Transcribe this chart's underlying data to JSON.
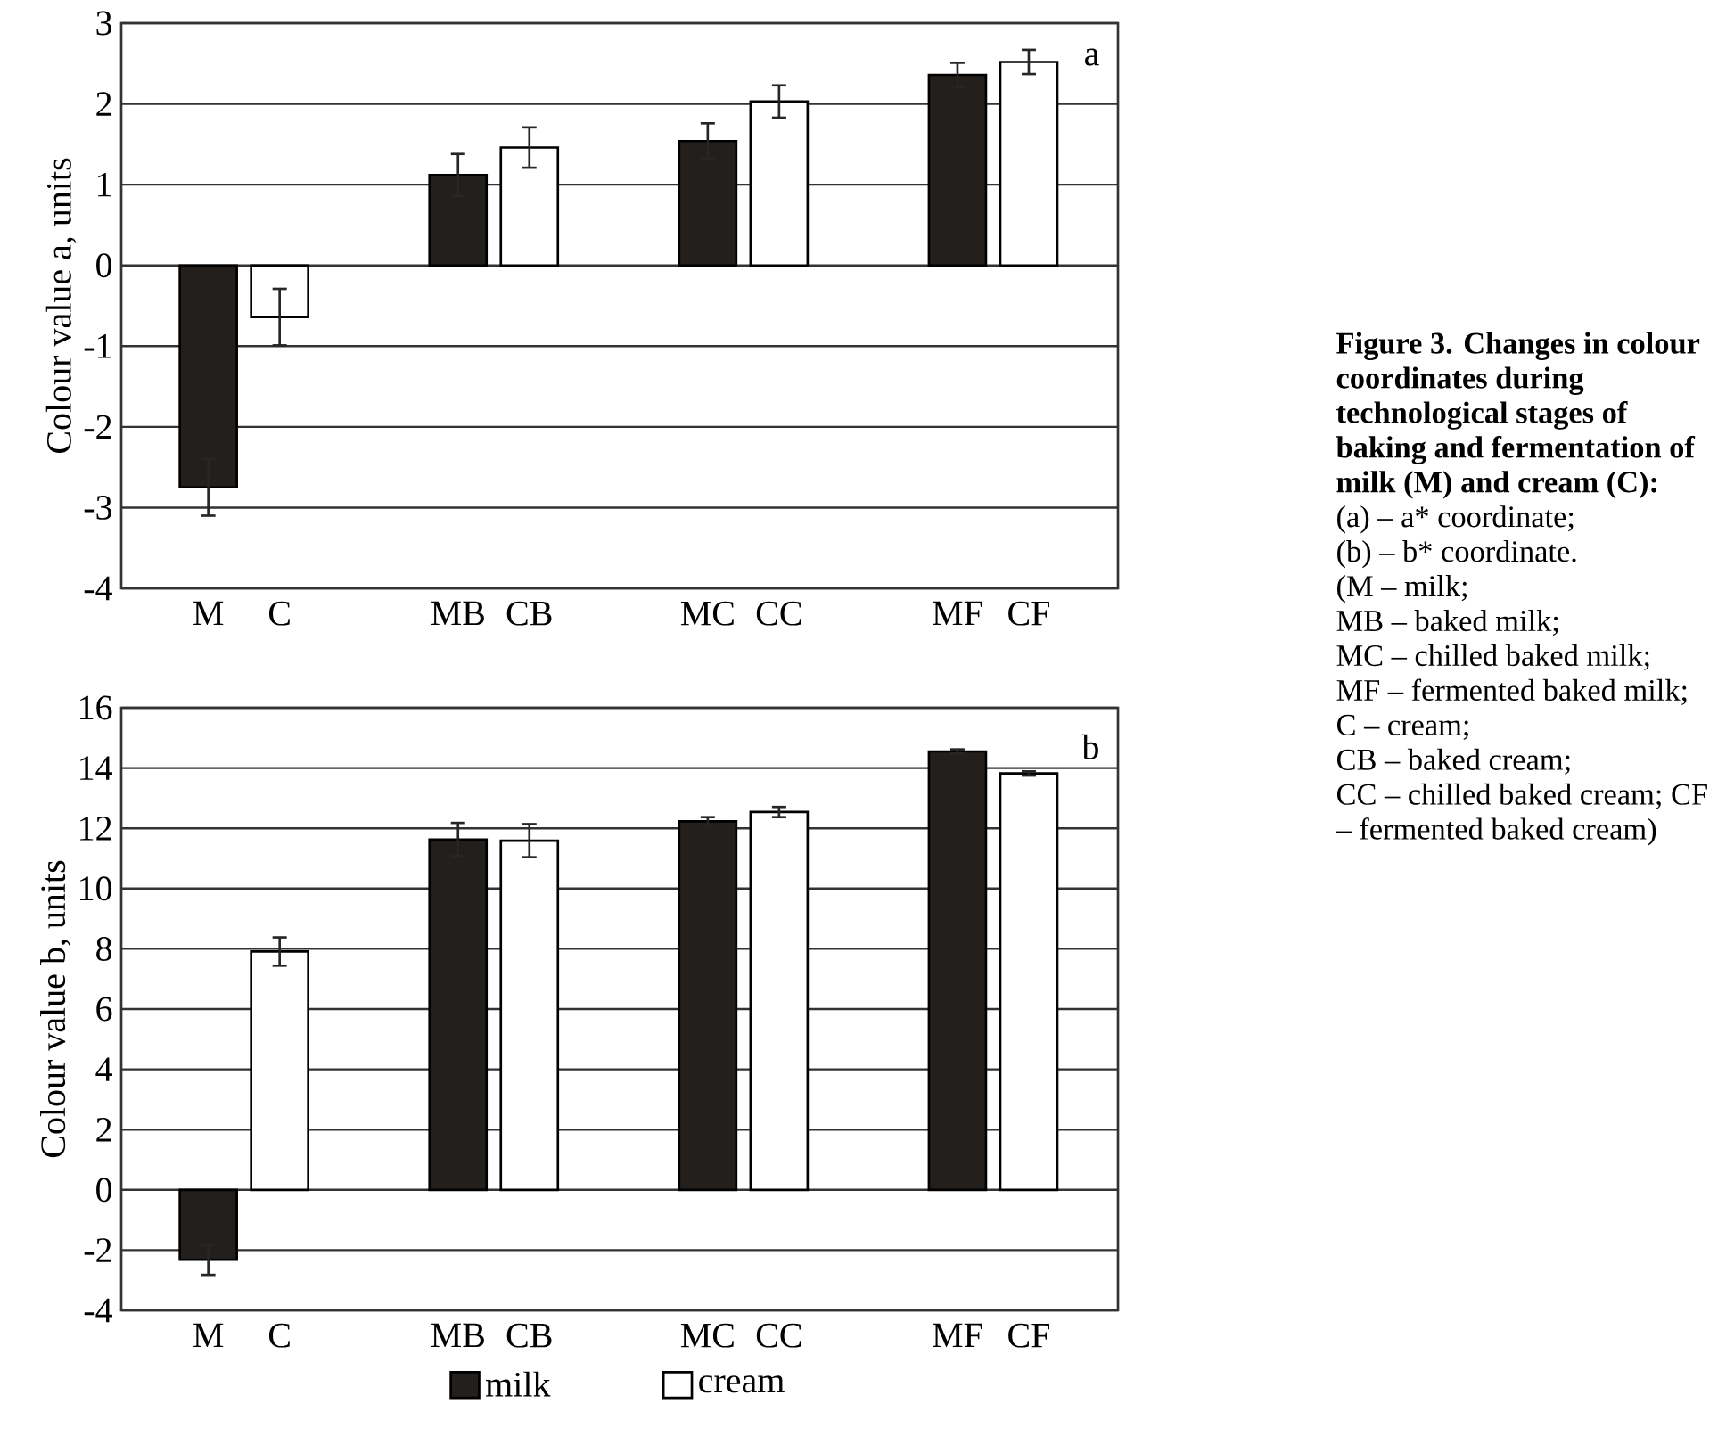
{
  "chart_data": [
    {
      "type": "bar",
      "ylabel": "Colour value a, units",
      "categories": [
        "M",
        "C",
        "MB",
        "CB",
        "MC",
        "CC",
        "MF",
        "CF"
      ],
      "ylim": [
        -4,
        3
      ],
      "yticks": [
        -4,
        -3,
        -2,
        -1,
        0,
        1,
        2,
        3
      ],
      "grid": "y",
      "annotations": [
        "a"
      ],
      "series": [
        {
          "color": "#231f1c",
          "values": [
            -2.75,
            null,
            1.12,
            null,
            1.54,
            null,
            2.36,
            null
          ],
          "errors": [
            0.35,
            null,
            0.26,
            null,
            0.22,
            null,
            0.15,
            null
          ]
        },
        {
          "color": "#ffffff",
          "values": [
            null,
            -0.64,
            null,
            1.46,
            null,
            2.03,
            null,
            2.52
          ],
          "errors": [
            null,
            0.35,
            null,
            0.25,
            null,
            0.2,
            null,
            0.15
          ]
        }
      ]
    },
    {
      "type": "bar",
      "ylabel": "Colour value b, units",
      "categories": [
        "M",
        "C",
        "MB",
        "CB",
        "MC",
        "CC",
        "MF",
        "CF"
      ],
      "ylim": [
        -4,
        16
      ],
      "yticks": [
        -4,
        -2,
        0,
        2,
        4,
        6,
        8,
        10,
        12,
        14,
        16
      ],
      "grid": "y",
      "legend": "bottom",
      "annotations": [
        "b"
      ],
      "series": [
        {
          "name": "milk",
          "color": "#231f1c",
          "values": [
            -2.32,
            null,
            11.63,
            null,
            12.23,
            null,
            14.55,
            null
          ],
          "errors": [
            0.5,
            null,
            0.55,
            null,
            0.14,
            null,
            0.07,
            null
          ]
        },
        {
          "name": "cream",
          "color": "#ffffff",
          "values": [
            null,
            7.91,
            null,
            11.59,
            null,
            12.54,
            null,
            13.82
          ],
          "errors": [
            null,
            0.47,
            null,
            0.55,
            null,
            0.17,
            null,
            0.07
          ]
        }
      ]
    },
    {
      "type": "other",
      "title": "Figure 3. Changes in colour coordinates during technological stages of baking and fermentation of milk (M) and cream (C):",
      "annotations": [
        "(a) – a* coordinate;",
        "(b) – b* coordinate.",
        "(M – milk;",
        "MB – baked milk;",
        " MC – chilled baked milk;",
        "MF – fermented baked milk;",
        "C – cream;",
        "CB – baked cream;",
        "CC – chilled baked cream; CF – fermented baked cream)"
      ]
    }
  ]
}
